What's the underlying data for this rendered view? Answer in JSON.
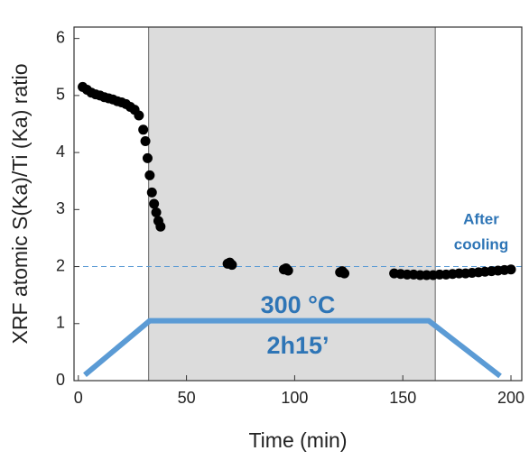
{
  "chart_data": {
    "type": "scatter",
    "xlabel": "Time (min)",
    "ylabel": "XRF atomic S(Ka)/Ti (Ka) ratio",
    "xlim": [
      -2,
      205
    ],
    "ylim": [
      0,
      6.2
    ],
    "xticks": [
      0,
      50,
      100,
      150,
      200
    ],
    "yticks": [
      0,
      1,
      2,
      3,
      4,
      5,
      6
    ],
    "shaded_region": [
      32.5,
      165
    ],
    "reference_line": 2,
    "annotations": [
      "300 °C",
      "2h15’",
      "After",
      "cooling"
    ],
    "series": [
      {
        "color": "#000000",
        "x": [
          2,
          4,
          6,
          8,
          10,
          12,
          14,
          16,
          18,
          20,
          22,
          24,
          26,
          28,
          30,
          31,
          32,
          33,
          34,
          35,
          36,
          37,
          38,
          69,
          70,
          71,
          95,
          96,
          97,
          121,
          122,
          123,
          146,
          149,
          152,
          155,
          158,
          161,
          164,
          167,
          170,
          173,
          176,
          179,
          182,
          185,
          188,
          191,
          194,
          197,
          200
        ],
        "values": [
          5.15,
          5.1,
          5.05,
          5.02,
          5.0,
          4.97,
          4.95,
          4.93,
          4.9,
          4.88,
          4.85,
          4.8,
          4.75,
          4.65,
          4.4,
          4.2,
          3.9,
          3.6,
          3.3,
          3.1,
          2.95,
          2.8,
          2.7,
          2.05,
          2.07,
          2.03,
          1.95,
          1.97,
          1.93,
          1.9,
          1.92,
          1.88,
          1.88,
          1.87,
          1.86,
          1.86,
          1.85,
          1.85,
          1.85,
          1.86,
          1.86,
          1.87,
          1.88,
          1.88,
          1.89,
          1.9,
          1.91,
          1.92,
          1.93,
          1.94,
          1.95
        ]
      }
    ],
    "profile": {
      "color": "#5b9bd5",
      "x": [
        3,
        33,
        162,
        195
      ],
      "values": [
        0.1,
        1.05,
        1.05,
        0.08
      ]
    }
  }
}
